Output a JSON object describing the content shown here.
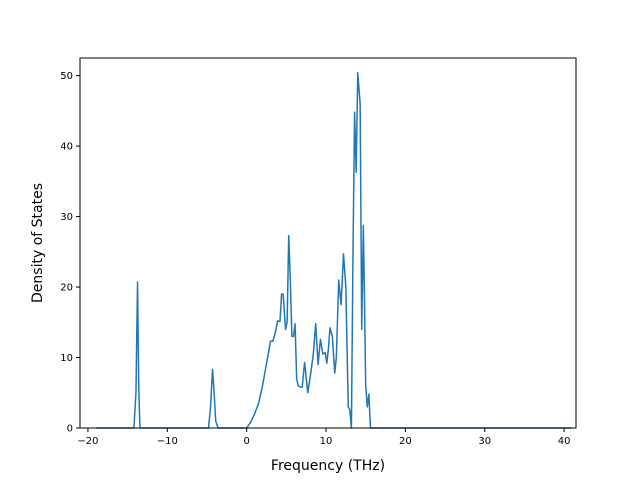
{
  "chart_data": {
    "type": "line",
    "title": "",
    "xlabel": "Frequency (THz)",
    "ylabel": "Density of States",
    "xlim": [
      -21,
      41.5
    ],
    "ylim": [
      0,
      52.5
    ],
    "xticks": [
      -20,
      -10,
      0,
      10,
      20,
      30,
      40
    ],
    "yticks": [
      0,
      10,
      20,
      30,
      40,
      50
    ],
    "xtick_labels": [
      "−20",
      "−10",
      "0",
      "10",
      "20",
      "30",
      "40"
    ],
    "ytick_labels": [
      "0",
      "10",
      "20",
      "30",
      "40",
      "50"
    ],
    "grid": false,
    "legend": "none",
    "line_color": "#1f77b4",
    "series": [
      {
        "x": [
          -19.0,
          -14.2,
          -13.95,
          -13.75,
          -13.6,
          -13.45,
          -13.25,
          -4.8,
          -4.55,
          -4.3,
          -4.1,
          -3.9,
          -3.6,
          0.0,
          0.5,
          1.0,
          1.5,
          2.0,
          2.4,
          2.8,
          3.0,
          3.3,
          3.6,
          3.9,
          4.2,
          4.4,
          4.6,
          4.9,
          5.1,
          5.3,
          5.5,
          5.7,
          5.9,
          6.1,
          6.3,
          6.5,
          6.8,
          7.0,
          7.3,
          7.7,
          8.1,
          8.4,
          8.7,
          9.0,
          9.3,
          9.6,
          9.9,
          10.1,
          10.3,
          10.5,
          10.8,
          11.1,
          11.3,
          11.6,
          11.9,
          12.2,
          12.5,
          12.8,
          13.0,
          13.2,
          13.4,
          13.6,
          13.8,
          14.0,
          14.3,
          14.5,
          14.7,
          14.85,
          15.0,
          15.2,
          15.4,
          15.6,
          15.8,
          16.0,
          16.2,
          16.3,
          16.5,
          16.7,
          16.9,
          17.0,
          17.2,
          17.4,
          17.6,
          17.8,
          18.5,
          41.0
        ],
        "y": [
          0,
          0,
          5,
          20.7,
          6,
          0,
          0,
          0,
          3,
          8.3,
          5,
          1,
          0,
          0,
          0.8,
          2.0,
          3.5,
          6,
          8.5,
          11,
          12.3,
          12.3,
          13.5,
          15.2,
          15.1,
          19,
          19,
          14,
          15,
          27.3,
          21,
          13,
          13,
          14.8,
          7,
          6,
          5.8,
          5.8,
          9.3,
          5,
          8,
          10.5,
          14.8,
          9,
          12.6,
          10.5,
          10.7,
          9.2,
          11.2,
          14.2,
          13,
          7.8,
          10,
          21,
          17.5,
          24.7,
          20,
          3,
          2.6,
          0,
          25,
          44.8,
          36.3,
          50.4,
          46,
          14,
          28.7,
          18,
          6,
          3,
          4.8,
          0,
          0,
          0,
          0,
          0,
          0,
          0,
          0,
          0,
          0,
          0,
          0,
          0,
          0,
          0
        ]
      }
    ]
  }
}
